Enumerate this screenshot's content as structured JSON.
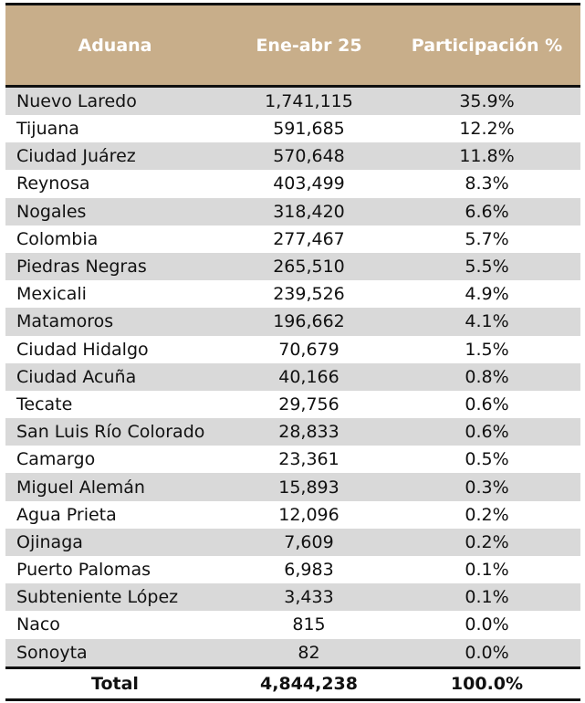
{
  "chart_data": {
    "type": "table",
    "columns": [
      "Aduana",
      "Ene-abr 25",
      "Participación %"
    ],
    "rows": [
      [
        "Nuevo Laredo",
        "1,741,115",
        "35.9%"
      ],
      [
        "Tijuana",
        "591,685",
        "12.2%"
      ],
      [
        "Ciudad Juárez",
        "570,648",
        "11.8%"
      ],
      [
        "Reynosa",
        "403,499",
        "8.3%"
      ],
      [
        "Nogales",
        "318,420",
        "6.6%"
      ],
      [
        "Colombia",
        "277,467",
        "5.7%"
      ],
      [
        "Piedras Negras",
        "265,510",
        "5.5%"
      ],
      [
        "Mexicali",
        "239,526",
        "4.9%"
      ],
      [
        "Matamoros",
        "196,662",
        "4.1%"
      ],
      [
        "Ciudad Hidalgo",
        "70,679",
        "1.5%"
      ],
      [
        "Ciudad Acuña",
        "40,166",
        "0.8%"
      ],
      [
        "Tecate",
        "29,756",
        "0.6%"
      ],
      [
        "San Luis Río Colorado",
        "28,833",
        "0.6%"
      ],
      [
        "Camargo",
        "23,361",
        "0.5%"
      ],
      [
        "Miguel Alemán",
        "15,893",
        "0.3%"
      ],
      [
        "Agua Prieta",
        "12,096",
        "0.2%"
      ],
      [
        "Ojinaga",
        "7,609",
        "0.2%"
      ],
      [
        "Puerto Palomas",
        "6,983",
        "0.1%"
      ],
      [
        "Subteniente López",
        "3,433",
        "0.1%"
      ],
      [
        "Naco",
        "815",
        "0.0%"
      ],
      [
        "Sonoyta",
        "82",
        "0.0%"
      ]
    ],
    "total": [
      "Total",
      "4,844,238",
      "100.0%"
    ]
  },
  "colors": {
    "header_bg": "#c8ae8a",
    "header_text": "#ffffff",
    "stripe": "#d9d9d9"
  }
}
